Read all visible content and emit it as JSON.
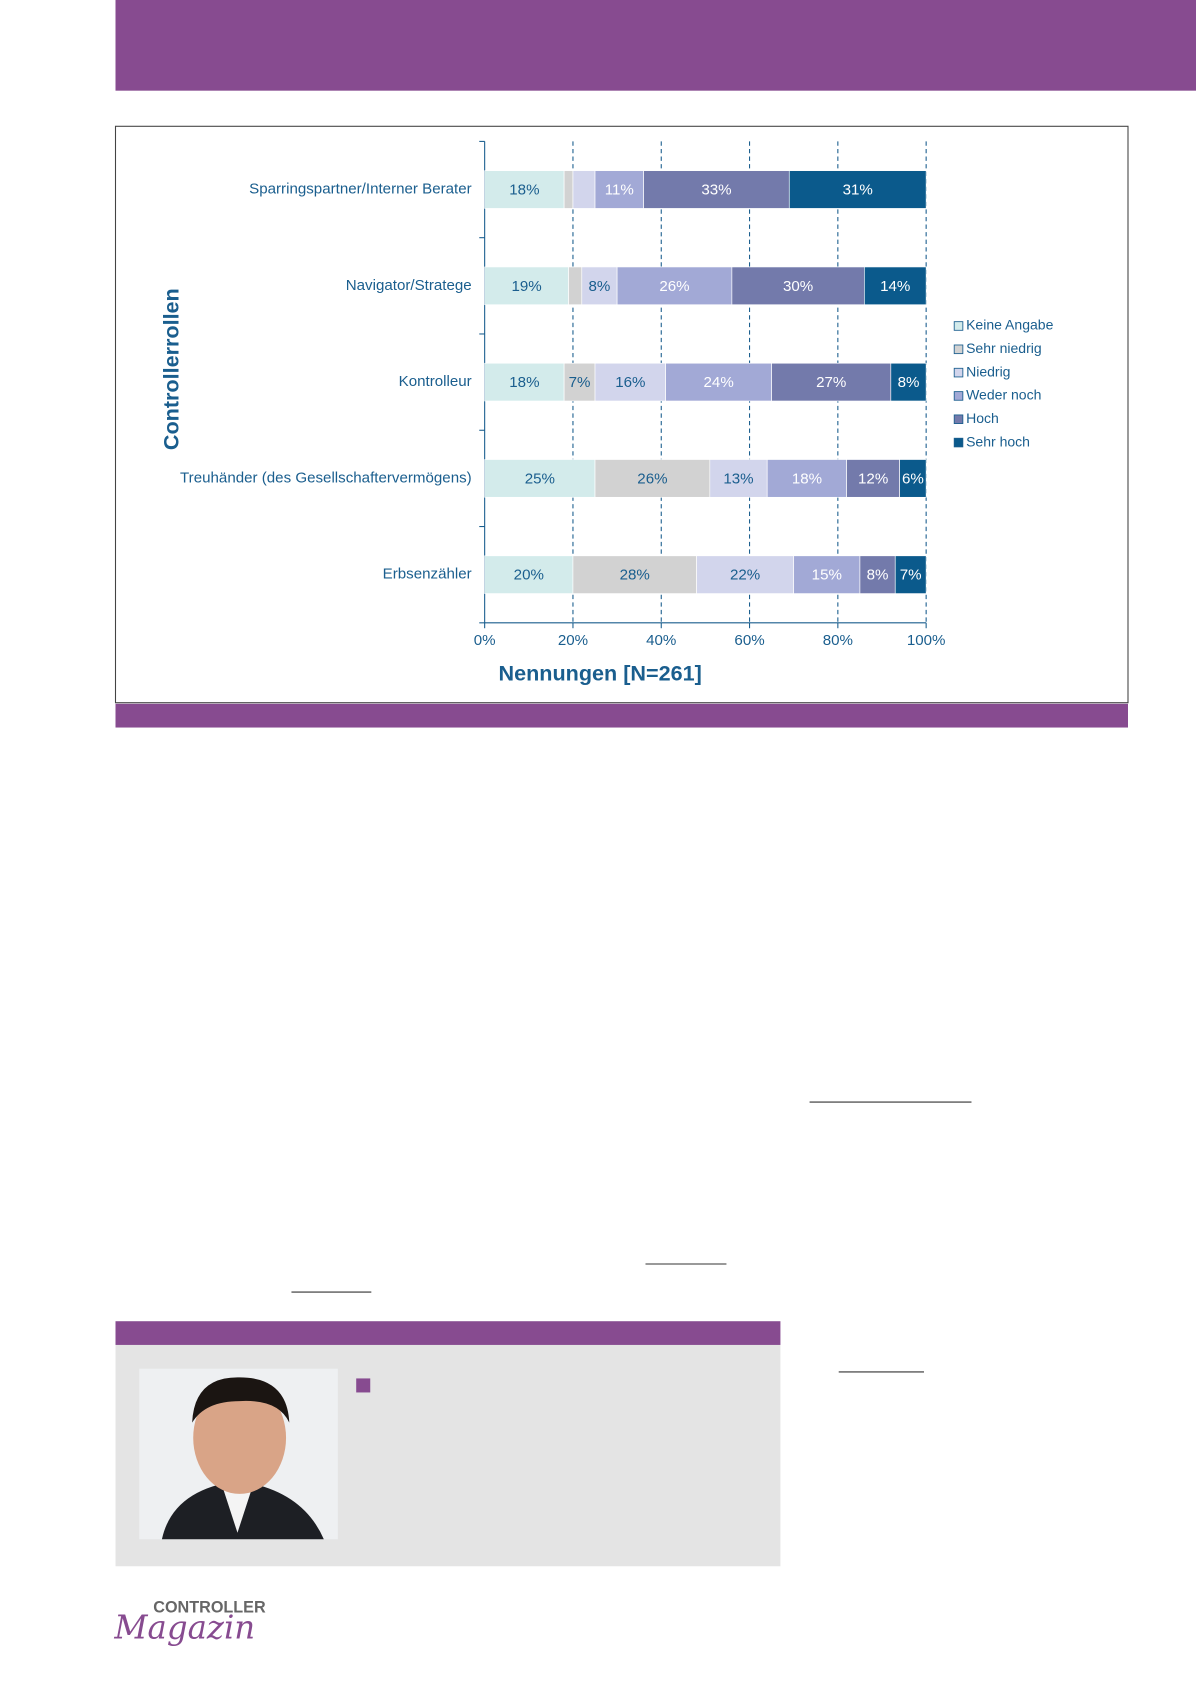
{
  "chart_data": {
    "type": "stacked-bar-horizontal",
    "y_axis_title": "Controllerrollen",
    "x_axis_title": "Nennungen [N=261]",
    "categories": [
      "Sparringspartner/Interner Berater",
      "Navigator/Stratege",
      "Kontrolleur",
      "Treuhänder (des Gesellschaftervermögens)",
      "Erbsenzähler"
    ],
    "series": [
      {
        "name": "Keine Angabe",
        "color": "#d3ebeb",
        "values": [
          18,
          19,
          18,
          25,
          20
        ],
        "value_labels": [
          "18%",
          "19%",
          "18%",
          "25%",
          "20%"
        ]
      },
      {
        "name": "Sehr niedrig",
        "color": "#d2d2d2",
        "values": [
          2,
          3,
          7,
          26,
          28
        ],
        "value_labels": [
          null,
          null,
          "7%",
          "26%",
          "28%"
        ]
      },
      {
        "name": "Niedrig",
        "color": "#d2d5ec",
        "values": [
          5,
          8,
          16,
          13,
          22
        ],
        "value_labels": [
          null,
          "8%",
          "16%",
          "13%",
          "22%"
        ]
      },
      {
        "name": "Weder noch",
        "color": "#a2a9d6",
        "values": [
          11,
          26,
          24,
          18,
          15
        ],
        "value_labels": [
          "11%",
          "26%",
          "24%",
          "18%",
          "15%"
        ]
      },
      {
        "name": "Hoch",
        "color": "#737aab",
        "values": [
          33,
          30,
          27,
          12,
          8
        ],
        "value_labels": [
          "33%",
          "30%",
          "27%",
          "12%",
          "8%"
        ]
      },
      {
        "name": "Sehr hoch",
        "color": "#0b5a8c",
        "values": [
          31,
          14,
          8,
          6,
          7
        ],
        "value_labels": [
          "31%",
          "14%",
          "8%",
          "6%",
          "7%"
        ]
      }
    ],
    "xlim": [
      0,
      100
    ],
    "xticks": [
      {
        "value": 0,
        "label": "0%"
      },
      {
        "value": 20,
        "label": "20%"
      },
      {
        "value": 40,
        "label": "40%"
      },
      {
        "value": 60,
        "label": "60%"
      },
      {
        "value": 80,
        "label": "80%"
      },
      {
        "value": 100,
        "label": "100%"
      }
    ],
    "grid": true,
    "legend": "right"
  },
  "logo": {
    "name": "CONTROLLER",
    "script": "Magazin"
  }
}
